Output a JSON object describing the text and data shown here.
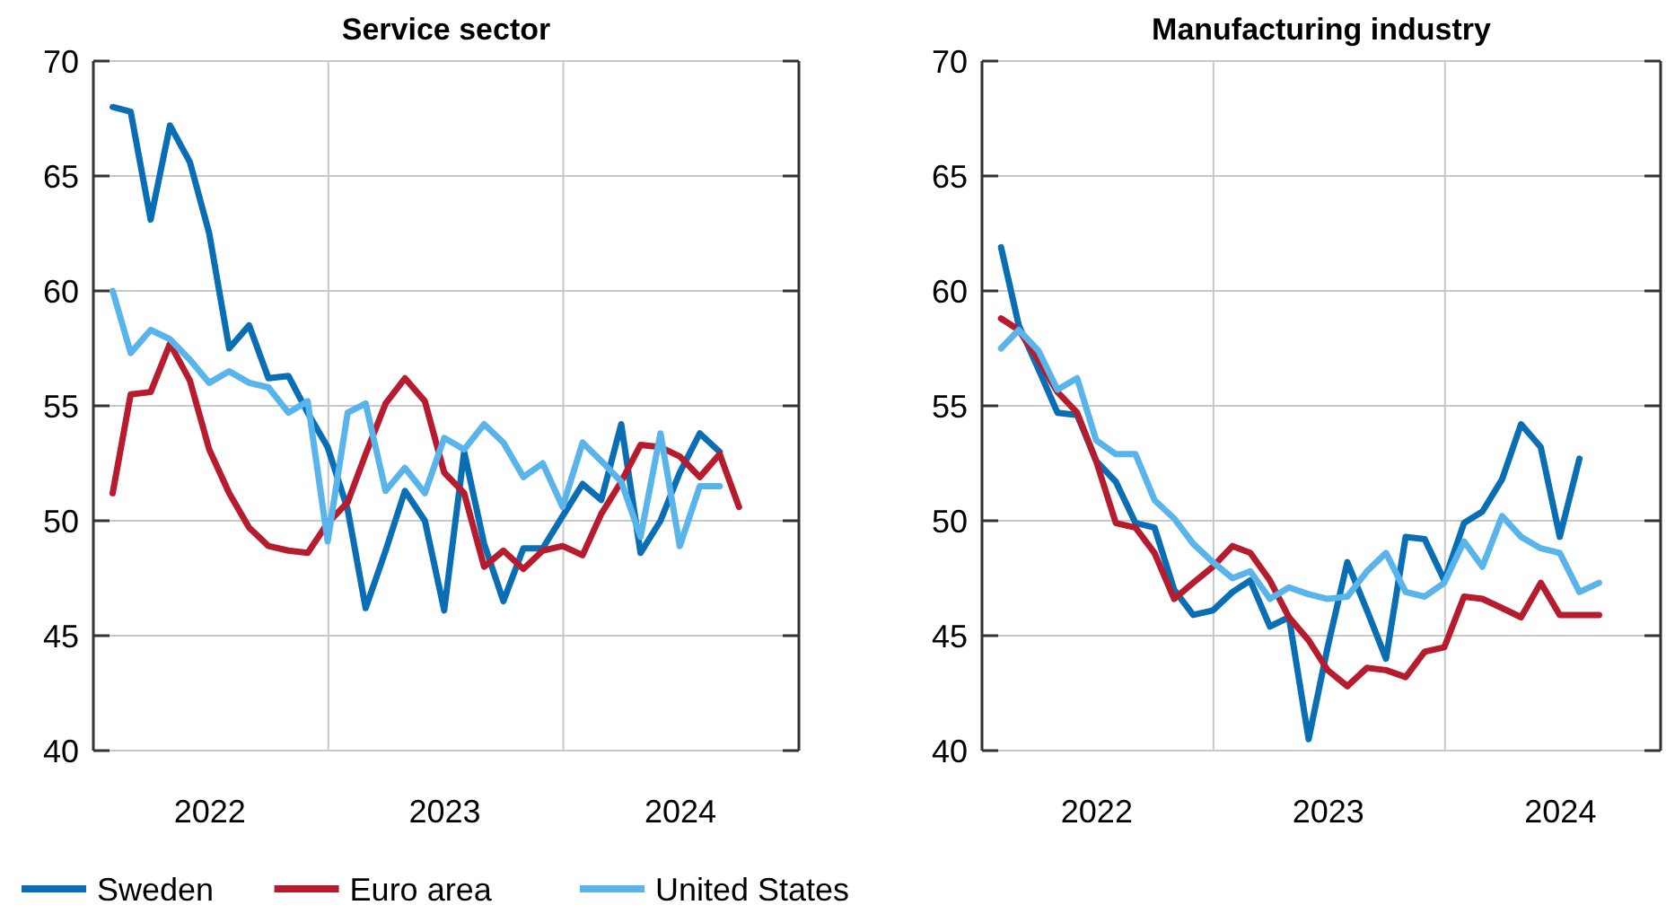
{
  "chart_data": [
    {
      "type": "line",
      "title": "Service sector",
      "x": [
        "2022-01-31",
        "2022-02-28",
        "2022-03-31",
        "2022-04-30",
        "2022-05-31",
        "2022-06-30",
        "2022-07-31",
        "2022-08-31",
        "2022-09-30",
        "2022-10-31",
        "2022-11-30",
        "2022-12-31",
        "2023-01-31",
        "2023-02-28",
        "2023-03-31",
        "2023-04-30",
        "2023-05-31",
        "2023-06-30",
        "2023-07-31",
        "2023-08-31",
        "2023-09-30",
        "2023-10-31",
        "2023-11-30",
        "2023-12-31",
        "2024-01-31",
        "2024-02-29",
        "2024-03-31",
        "2024-04-30",
        "2024-05-31",
        "2024-06-30",
        "2024-07-31",
        "2024-08-31",
        "2024-09-30"
      ],
      "xlim": [
        "2022-01-01",
        "2025-01-01"
      ],
      "xticks": [
        {
          "value": "2022-07-01",
          "label": "2022"
        },
        {
          "value": "2023-07-01",
          "label": "2023"
        },
        {
          "value": "2024-07-01",
          "label": "2024"
        },
        {
          "value": "2023-01-01",
          "label": null
        },
        {
          "value": "2024-01-01",
          "label": null
        }
      ],
      "ylim": [
        40,
        70
      ],
      "yticks": [
        40,
        45,
        50,
        55,
        60,
        65,
        70
      ],
      "grid": true,
      "legend": "bottom",
      "series": [
        {
          "name": "Sweden",
          "color": "#0a6eb4",
          "values": [
            68.0,
            67.8,
            63.1,
            67.2,
            65.6,
            62.5,
            57.5,
            58.5,
            56.2,
            56.3,
            54.7,
            53.2,
            50.5,
            46.2,
            48.7,
            51.3,
            50.0,
            46.1,
            53.0,
            49.0,
            46.5,
            48.8,
            48.8,
            50.2,
            51.6,
            50.9,
            54.2,
            48.6,
            50.0,
            52.1,
            53.8,
            53.0,
            null
          ]
        },
        {
          "name": "Euro area",
          "color": "#b71c2e",
          "values": [
            51.2,
            55.5,
            55.6,
            57.7,
            56.1,
            53.1,
            51.2,
            49.7,
            48.9,
            48.7,
            48.6,
            49.9,
            50.8,
            52.9,
            55.1,
            56.2,
            55.2,
            52.1,
            51.2,
            48.0,
            48.7,
            47.9,
            48.7,
            48.9,
            48.5,
            50.3,
            51.7,
            53.3,
            53.2,
            52.8,
            51.9,
            52.9,
            50.6
          ]
        },
        {
          "name": "United States",
          "color": "#5ab4ec",
          "values": [
            60.0,
            57.3,
            58.3,
            57.9,
            57.0,
            56.0,
            56.5,
            56.0,
            55.8,
            54.7,
            55.2,
            49.1,
            54.7,
            55.1,
            51.3,
            52.3,
            51.2,
            53.6,
            53.1,
            54.2,
            53.4,
            51.9,
            52.5,
            50.6,
            53.4,
            52.6,
            51.7,
            49.3,
            53.8,
            48.9,
            51.5,
            51.5,
            null
          ]
        }
      ]
    },
    {
      "type": "line",
      "title": "Manufacturing industry",
      "x": [
        "2022-01-31",
        "2022-02-28",
        "2022-03-31",
        "2022-04-30",
        "2022-05-31",
        "2022-06-30",
        "2022-07-31",
        "2022-08-31",
        "2022-09-30",
        "2022-10-31",
        "2022-11-30",
        "2022-12-31",
        "2023-01-31",
        "2023-02-28",
        "2023-03-31",
        "2023-04-30",
        "2023-05-31",
        "2023-06-30",
        "2023-07-31",
        "2023-08-31",
        "2023-09-30",
        "2023-10-31",
        "2023-11-30",
        "2023-12-31",
        "2024-01-31",
        "2024-02-29",
        "2024-03-31",
        "2024-04-30",
        "2024-05-31",
        "2024-06-30",
        "2024-07-31",
        "2024-08-31"
      ],
      "xlim": [
        "2022-01-01",
        "2024-12-06"
      ],
      "xticks": [
        {
          "value": "2022-07-01",
          "label": "2022"
        },
        {
          "value": "2023-07-01",
          "label": "2023"
        },
        {
          "value": "2024-07-01",
          "label": "2024"
        },
        {
          "value": "2023-01-01",
          "label": null
        },
        {
          "value": "2024-01-01",
          "label": null
        }
      ],
      "ylim": [
        40,
        70
      ],
      "yticks": [
        40,
        45,
        50,
        55,
        60,
        65,
        70
      ],
      "grid": true,
      "legend": "bottom",
      "series": [
        {
          "name": "Sweden",
          "color": "#0a6eb4",
          "values": [
            61.9,
            58.5,
            56.6,
            54.7,
            54.6,
            52.6,
            51.7,
            49.9,
            49.7,
            47.0,
            45.9,
            46.1,
            46.9,
            47.4,
            45.4,
            45.8,
            40.5,
            44.5,
            48.2,
            46.1,
            44.0,
            49.3,
            49.2,
            47.4,
            49.9,
            50.4,
            51.8,
            54.2,
            53.2,
            49.3,
            52.7,
            null
          ]
        },
        {
          "name": "Euro area",
          "color": "#b71c2e",
          "values": [
            58.8,
            58.3,
            57.0,
            55.6,
            54.7,
            52.6,
            49.9,
            49.7,
            48.6,
            46.6,
            47.3,
            48.0,
            48.9,
            48.6,
            47.4,
            45.8,
            44.8,
            43.5,
            42.8,
            43.6,
            43.5,
            43.2,
            44.3,
            44.5,
            46.7,
            46.6,
            46.2,
            45.8,
            47.3,
            45.9,
            45.9,
            45.9
          ]
        },
        {
          "name": "United States",
          "color": "#5ab4ec",
          "values": [
            57.5,
            58.3,
            57.4,
            55.7,
            56.2,
            53.5,
            52.9,
            52.9,
            50.9,
            50.1,
            49.0,
            48.2,
            47.5,
            47.8,
            46.6,
            47.1,
            46.8,
            46.6,
            46.7,
            47.8,
            48.6,
            46.9,
            46.7,
            47.3,
            49.1,
            48.0,
            50.2,
            49.3,
            48.8,
            48.6,
            46.9,
            47.3
          ]
        }
      ]
    }
  ]
}
